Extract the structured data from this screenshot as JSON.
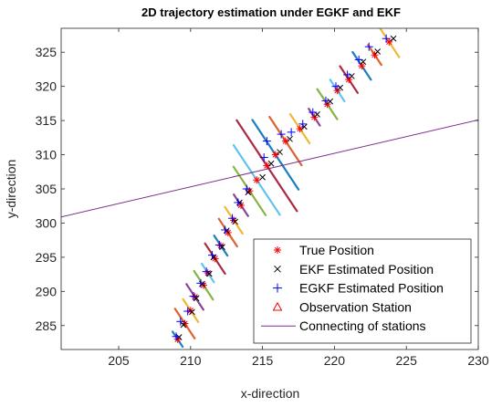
{
  "chart_data": {
    "type": "scatter",
    "title": "2D trajectory estimation under EGKF and EKF",
    "xlabel": "x-direction",
    "ylabel": "y-direction",
    "xlim": [
      201,
      230
    ],
    "ylim": [
      281.5,
      328.5
    ],
    "xticks": [
      205,
      210,
      215,
      220,
      225,
      230
    ],
    "yticks": [
      285,
      290,
      295,
      300,
      305,
      310,
      315,
      320,
      325
    ],
    "grid": false,
    "legend_position": "bottom-right",
    "colors": {
      "true": "#ff0000",
      "ekf": "#000000",
      "egkf": "#0000ff",
      "station": "#ff0000",
      "line": "#7e2f8e",
      "ellipses": [
        "#0072bd",
        "#d95319",
        "#edb120",
        "#7e2f8e",
        "#77ac30",
        "#4dbeee",
        "#a2142f"
      ]
    },
    "series": [
      {
        "name": "True Position",
        "marker": "asterisk",
        "points": [
          [
            209.1,
            283.0
          ],
          [
            209.6,
            285.3
          ],
          [
            210.0,
            287.2
          ],
          [
            210.3,
            289.2
          ],
          [
            210.9,
            290.9
          ],
          [
            211.2,
            292.7
          ],
          [
            211.7,
            294.8
          ],
          [
            212.1,
            296.7
          ],
          [
            212.6,
            298.6
          ],
          [
            213.0,
            300.4
          ],
          [
            213.5,
            302.6
          ],
          [
            214.1,
            304.7
          ],
          [
            214.6,
            306.3
          ],
          [
            215.3,
            308.4
          ],
          [
            215.9,
            310.0
          ],
          [
            216.6,
            312.0
          ],
          [
            217.6,
            313.8
          ],
          [
            218.6,
            315.5
          ],
          [
            219.5,
            317.4
          ],
          [
            220.2,
            319.4
          ],
          [
            221.0,
            321.0
          ],
          [
            221.9,
            323.0
          ],
          [
            222.8,
            324.6
          ],
          [
            223.8,
            326.5
          ]
        ]
      },
      {
        "name": "EKF Estimated Position",
        "marker": "x",
        "points": [
          [
            209.2,
            283.3
          ],
          [
            209.5,
            285.1
          ],
          [
            210.1,
            287.0
          ],
          [
            210.4,
            289.0
          ],
          [
            210.8,
            291.1
          ],
          [
            211.3,
            292.6
          ],
          [
            211.6,
            295.0
          ],
          [
            212.2,
            296.5
          ],
          [
            212.5,
            298.9
          ],
          [
            213.1,
            300.2
          ],
          [
            213.4,
            303.0
          ],
          [
            214.0,
            304.5
          ],
          [
            215.0,
            306.7
          ],
          [
            215.6,
            308.7
          ],
          [
            216.2,
            310.4
          ],
          [
            216.9,
            312.3
          ],
          [
            217.9,
            314.1
          ],
          [
            218.8,
            315.9
          ],
          [
            219.7,
            317.8
          ],
          [
            220.4,
            319.8
          ],
          [
            221.2,
            321.5
          ],
          [
            222.0,
            323.6
          ],
          [
            223.0,
            325.1
          ],
          [
            224.1,
            327.0
          ]
        ]
      },
      {
        "name": "EGKF Estimated Position",
        "marker": "plus",
        "points": [
          [
            209.0,
            283.4
          ],
          [
            209.3,
            285.6
          ],
          [
            209.8,
            287.1
          ],
          [
            210.2,
            289.3
          ],
          [
            210.7,
            291.2
          ],
          [
            211.1,
            292.9
          ],
          [
            211.5,
            295.3
          ],
          [
            212.0,
            296.8
          ],
          [
            212.4,
            299.0
          ],
          [
            212.9,
            300.7
          ],
          [
            213.3,
            303.0
          ],
          [
            213.9,
            305.0
          ],
          [
            215.1,
            309.6
          ],
          [
            215.3,
            312.0
          ],
          [
            216.3,
            313.0
          ],
          [
            217.0,
            313.3
          ],
          [
            217.8,
            314.5
          ],
          [
            218.5,
            316.2
          ],
          [
            219.4,
            317.9
          ],
          [
            220.1,
            320.0
          ],
          [
            220.9,
            321.7
          ],
          [
            221.7,
            323.9
          ],
          [
            222.4,
            325.8
          ],
          [
            223.6,
            327.0
          ]
        ]
      },
      {
        "name": "Observation Station",
        "marker": "triangle",
        "points": []
      },
      {
        "name": "Connecting of stations",
        "marker": "line",
        "points": [
          [
            201,
            300.9
          ],
          [
            230,
            315.1
          ]
        ]
      }
    ]
  }
}
